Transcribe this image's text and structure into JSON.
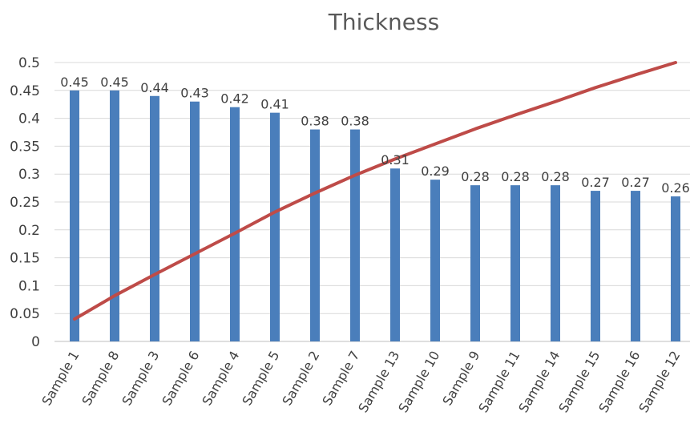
{
  "chart_data": {
    "type": "bar",
    "title": "Thickness",
    "xlabel": "",
    "ylabel": "",
    "ylim": [
      0,
      0.5
    ],
    "yticks": [
      "0",
      "0.05",
      "0.1",
      "0.15",
      "0.2",
      "0.25",
      "0.3",
      "0.35",
      "0.4",
      "0.45",
      "0.5"
    ],
    "grid": true,
    "legend": "none",
    "categories": [
      "Sample 1",
      "Sample 8",
      "Sample 3",
      "Sample 6",
      "Sample 4",
      "Sample 5",
      "Sample 2",
      "Sample 7",
      "Sample 13",
      "Sample 10",
      "Sample 9",
      "Sample 11",
      "Sample 14",
      "Sample 15",
      "Sample 16",
      "Sample 12"
    ],
    "series": [
      {
        "type": "bar",
        "color": "#4a7ebb",
        "values": [
          0.45,
          0.45,
          0.44,
          0.43,
          0.42,
          0.41,
          0.38,
          0.38,
          0.31,
          0.29,
          0.28,
          0.28,
          0.28,
          0.27,
          0.27,
          0.26
        ],
        "data_labels": [
          "0.45",
          "0.45",
          "0.44",
          "0.43",
          "0.42",
          "0.41",
          "0.38",
          "0.38",
          "0.31",
          "0.29",
          "0.28",
          "0.28",
          "0.28",
          "0.27",
          "0.27",
          "0.26"
        ]
      },
      {
        "type": "line",
        "color": "#be4b48",
        "values": [
          0.04,
          0.082,
          0.12,
          0.157,
          0.194,
          0.232,
          0.266,
          0.298,
          0.327,
          0.354,
          0.381,
          0.406,
          0.43,
          0.455,
          0.478,
          0.5
        ]
      }
    ]
  }
}
